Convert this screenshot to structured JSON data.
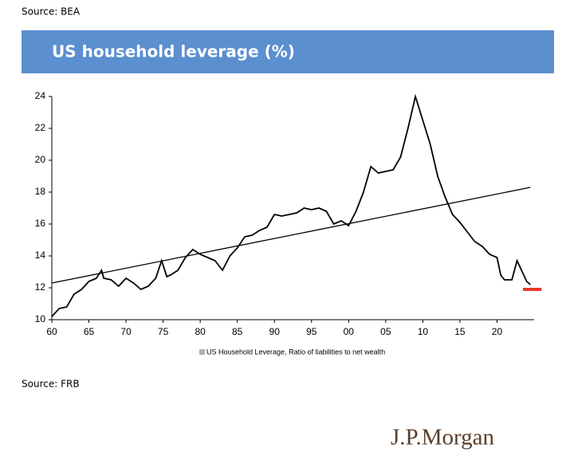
{
  "header": {
    "source_top": "Source: BEA"
  },
  "chart_data": {
    "type": "line",
    "title": "US household leverage (%)",
    "series": [
      {
        "name": "US Household Leverage, Ratio of liabilities to net wealth",
        "color": "#000000",
        "x": [
          1960,
          1961,
          1962,
          1963,
          1964,
          1965,
          1966,
          1966.7,
          1967,
          1968,
          1969,
          1970,
          1971,
          1972,
          1973,
          1974,
          1974.8,
          1975.5,
          1976,
          1977,
          1978,
          1979,
          1980,
          1981,
          1982,
          1983,
          1984,
          1985,
          1986,
          1987,
          1988,
          1989,
          1990,
          1991,
          1992,
          1993,
          1994,
          1995,
          1996,
          1997,
          1998,
          1999,
          2000,
          2001,
          2002,
          2003,
          2004,
          2005,
          2006,
          2007,
          2008,
          2009,
          2010,
          2011,
          2012,
          2013,
          2014,
          2015,
          2016,
          2017,
          2018,
          2019,
          2020,
          2020.5,
          2021,
          2022,
          2022.7,
          2023.5,
          2024,
          2024.5
        ],
        "values": [
          10.2,
          10.7,
          10.8,
          11.6,
          11.9,
          12.4,
          12.6,
          13.1,
          12.6,
          12.5,
          12.1,
          12.6,
          12.3,
          11.9,
          12.1,
          12.6,
          13.7,
          12.7,
          12.8,
          13.1,
          13.9,
          14.4,
          14.1,
          13.9,
          13.7,
          13.1,
          14.0,
          14.5,
          15.2,
          15.3,
          15.6,
          15.8,
          16.6,
          16.5,
          16.6,
          16.7,
          17.0,
          16.9,
          17.0,
          16.8,
          16.0,
          16.2,
          15.9,
          16.8,
          18.0,
          19.6,
          19.2,
          19.3,
          19.4,
          20.2,
          22.0,
          24.0,
          22.5,
          21.0,
          19.0,
          17.7,
          16.6,
          16.1,
          15.5,
          14.9,
          14.6,
          14.1,
          13.9,
          12.8,
          12.5,
          12.5,
          13.7,
          12.9,
          12.4,
          12.2
        ]
      }
    ],
    "trend": {
      "x": [
        1960,
        2024.5
      ],
      "values": [
        12.3,
        18.3
      ],
      "color": "#000000"
    },
    "marker": {
      "x": [
        2023.5,
        2026
      ],
      "values": [
        11.9,
        11.9
      ],
      "color": "#e8392b"
    },
    "xlim": [
      1960,
      2025
    ],
    "ylim": [
      10,
      24
    ],
    "xticks": [
      {
        "value": 1960,
        "label": "60"
      },
      {
        "value": 1965,
        "label": "65"
      },
      {
        "value": 1970,
        "label": "70"
      },
      {
        "value": 1975,
        "label": "75"
      },
      {
        "value": 1980,
        "label": "80"
      },
      {
        "value": 1985,
        "label": "85"
      },
      {
        "value": 1990,
        "label": "90"
      },
      {
        "value": 1995,
        "label": "95"
      },
      {
        "value": 2000,
        "label": "00"
      },
      {
        "value": 2005,
        "label": "05"
      },
      {
        "value": 2010,
        "label": "10"
      },
      {
        "value": 2015,
        "label": "15"
      },
      {
        "value": 2020,
        "label": "20"
      }
    ],
    "yticks": [
      10,
      12,
      14,
      16,
      18,
      20,
      22,
      24
    ],
    "grid": false
  },
  "footer": {
    "source_bottom": "Source: FRB",
    "logo": "J.P.Morgan"
  }
}
